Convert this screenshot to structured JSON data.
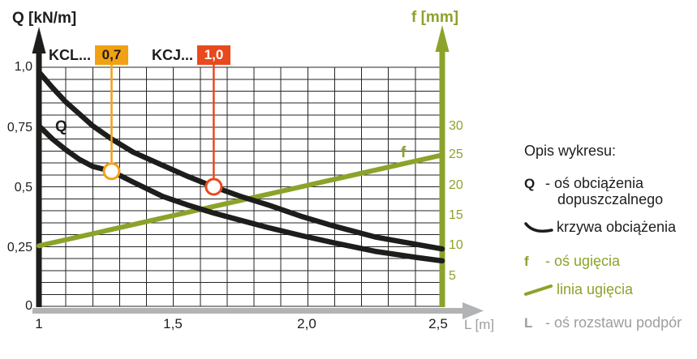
{
  "colors": {
    "curve_black": "#1d1d1b",
    "olive_green": "#8ba32a",
    "axis_gray": "#b1b3b5",
    "text_gray": "#9c9ea0",
    "badge_orange": "#f2a114",
    "badge_red": "#e8491d",
    "background": "#ffffff"
  },
  "chart": {
    "q_axis_title": "Q [kN/m]",
    "f_axis_title": "f [mm]",
    "l_axis_title": "L [m]",
    "q_ticks": [
      "1,0",
      "0,75",
      "0,5",
      "0,25",
      "0"
    ],
    "f_ticks": [
      "30",
      "25",
      "20",
      "15",
      "10",
      "5"
    ],
    "l_ticks": [
      "1",
      "1,5",
      "2,0",
      "2,5"
    ],
    "series_labels": {
      "kcl": "KCL...",
      "kcj": "KCJ..."
    },
    "badges": {
      "kcl": "0,7",
      "kcj": "1,0"
    },
    "q_curve_label": "Q",
    "f_line_label": "f"
  },
  "chart_data": {
    "type": "line",
    "title": "",
    "xlabel": "L [m]",
    "ylabel_left": "Q [kN/m]",
    "ylabel_right": "f [mm]",
    "x_range": [
      1.0,
      2.5
    ],
    "x_grid_step": 0.1,
    "q_range": [
      0,
      1.0
    ],
    "q_grid_step": 0.05,
    "q_tick_values": [
      1.0,
      0.75,
      0.5,
      0.25,
      0
    ],
    "f_tick_values": [
      30,
      25,
      20,
      15,
      10,
      5
    ],
    "grid": "on",
    "series": [
      {
        "name": "KCJ... 1,0 (krzywa obciążenia)",
        "axis": "Q",
        "color": "#1d1d1b",
        "points": [
          [
            1.0,
            0.98
          ],
          [
            1.05,
            0.915
          ],
          [
            1.1,
            0.855
          ],
          [
            1.15,
            0.805
          ],
          [
            1.2,
            0.755
          ],
          [
            1.27,
            0.7
          ],
          [
            1.35,
            0.645
          ],
          [
            1.46,
            0.59
          ],
          [
            1.55,
            0.545
          ],
          [
            1.65,
            0.5
          ],
          [
            1.75,
            0.46
          ],
          [
            1.85,
            0.425
          ],
          [
            1.98,
            0.375
          ],
          [
            2.1,
            0.335
          ],
          [
            2.25,
            0.29
          ],
          [
            2.4,
            0.26
          ],
          [
            2.5,
            0.24
          ]
        ]
      },
      {
        "name": "KCL... 0,7 (krzywa obciążenia)",
        "axis": "Q",
        "color": "#1d1d1b",
        "points": [
          [
            1.0,
            0.755
          ],
          [
            1.05,
            0.7
          ],
          [
            1.1,
            0.655
          ],
          [
            1.15,
            0.615
          ],
          [
            1.2,
            0.585
          ],
          [
            1.27,
            0.565
          ],
          [
            1.35,
            0.52
          ],
          [
            1.46,
            0.46
          ],
          [
            1.55,
            0.425
          ],
          [
            1.65,
            0.39
          ],
          [
            1.75,
            0.36
          ],
          [
            1.85,
            0.33
          ],
          [
            1.98,
            0.295
          ],
          [
            2.1,
            0.265
          ],
          [
            2.25,
            0.23
          ],
          [
            2.4,
            0.205
          ],
          [
            2.5,
            0.19
          ]
        ]
      },
      {
        "name": "linia ugięcia (f)",
        "axis": "f",
        "color": "#8ba32a",
        "points": [
          [
            1.0,
            10
          ],
          [
            2.5,
            25
          ]
        ]
      }
    ],
    "markers": [
      {
        "badge": "0,7",
        "series": "KCL...",
        "L": 1.27,
        "Q": 0.565,
        "color": "#f2a114"
      },
      {
        "badge": "1,0",
        "series": "KCJ...",
        "L": 1.65,
        "Q": 0.5,
        "color": "#e8491d"
      }
    ]
  },
  "legend": {
    "heading": "Opis wykresu:",
    "items": [
      {
        "symbol": "Q",
        "text": "- oś obciążenia dopuszczalnego"
      },
      {
        "icon": "load-curve-icon",
        "text": "krzywa obciążenia"
      },
      {
        "symbol": "f",
        "text": "- oś ugięcia"
      },
      {
        "icon": "deflection-line-icon",
        "text": "linia ugięcia"
      },
      {
        "symbol": "L",
        "text": "- oś rozstawu podpór"
      }
    ]
  }
}
